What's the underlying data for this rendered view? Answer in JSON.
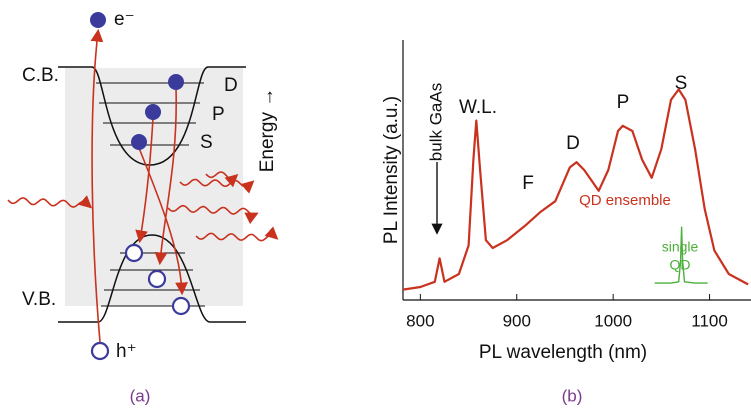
{
  "diagram": {
    "electron": "e⁻",
    "hole": "h⁺",
    "conduction_band": "C.B.",
    "valence_band": "V.B.",
    "levels": [
      "D",
      "P",
      "S"
    ],
    "energy_axis": "Energy →",
    "panel_label": "(a)"
  },
  "chart_data": {
    "type": "line",
    "panel_label": "(b)",
    "xlabel": "PL wavelength (nm)",
    "ylabel": "PL Intensity (a.u.)",
    "xlim": [
      782,
      1143
    ],
    "ylim": [
      0,
      1
    ],
    "xticks": [
      800,
      900,
      1000,
      1100
    ],
    "series": [
      {
        "color": "#c8321e",
        "x": [
          782,
          800,
          815,
          820,
          825,
          840,
          850,
          855,
          858,
          862,
          868,
          875,
          890,
          910,
          925,
          940,
          955,
          962,
          970,
          985,
          995,
          1005,
          1010,
          1020,
          1030,
          1040,
          1050,
          1060,
          1068,
          1075,
          1085,
          1095,
          1105,
          1120,
          1140
        ],
        "values": [
          0.04,
          0.05,
          0.07,
          0.16,
          0.07,
          0.1,
          0.21,
          0.54,
          0.69,
          0.5,
          0.23,
          0.2,
          0.23,
          0.29,
          0.34,
          0.38,
          0.51,
          0.53,
          0.5,
          0.42,
          0.5,
          0.65,
          0.67,
          0.65,
          0.54,
          0.47,
          0.58,
          0.77,
          0.81,
          0.77,
          0.58,
          0.35,
          0.19,
          0.1,
          0.06
        ]
      },
      {
        "color": "#4caf3a",
        "x": [
          1043,
          1060,
          1068,
          1070,
          1071,
          1072,
          1074,
          1085,
          1098
        ],
        "values": [
          0.065,
          0.065,
          0.07,
          0.15,
          0.28,
          0.15,
          0.07,
          0.065,
          0.065
        ]
      }
    ],
    "annotations": [
      "bulk GaAs",
      "W.L.",
      "F",
      "D",
      "P",
      "S",
      "QD ensemble",
      "single",
      "QD"
    ]
  }
}
